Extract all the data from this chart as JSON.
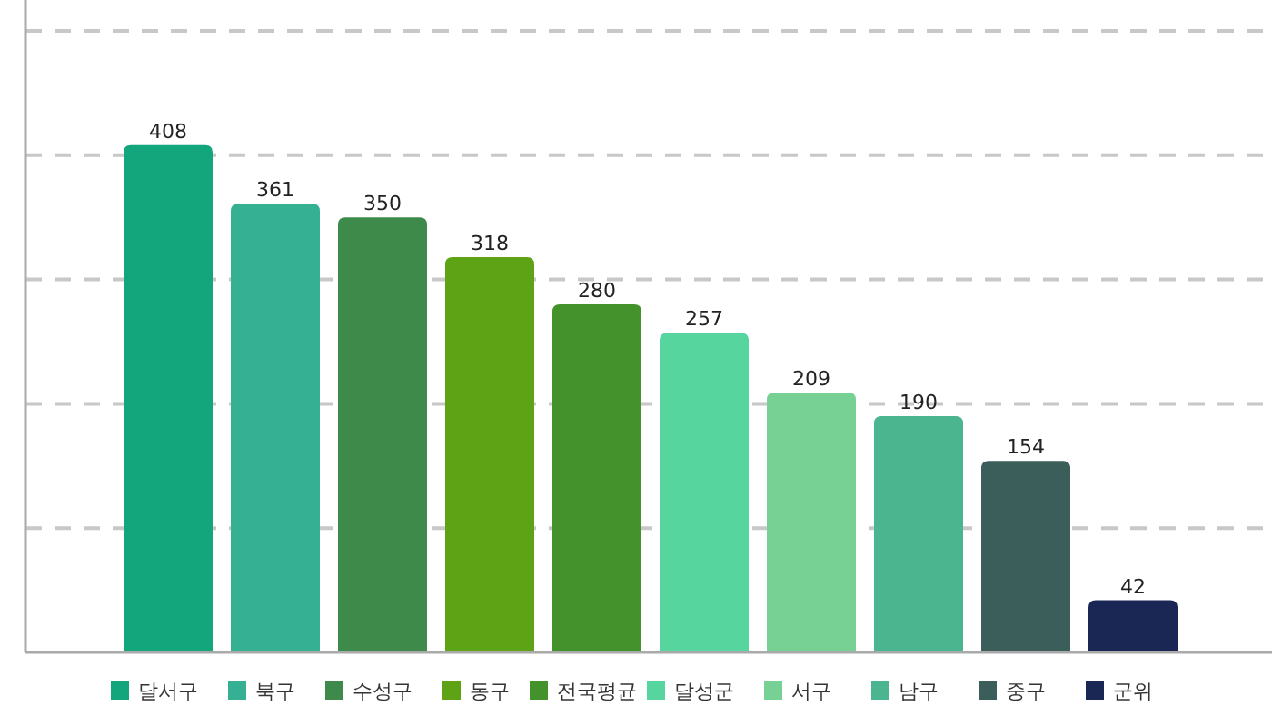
{
  "chart_data": {
    "type": "bar",
    "categories": [
      "달서구",
      "북구",
      "수성구",
      "동구",
      "전국평균",
      "달성군",
      "서구",
      "남구",
      "중구",
      "군위"
    ],
    "values": [
      408,
      361,
      350,
      318,
      280,
      257,
      209,
      190,
      154,
      42
    ],
    "colors": [
      "#13a67c",
      "#36b092",
      "#3d8a4a",
      "#5ea316",
      "#43922b",
      "#57d59f",
      "#77d194",
      "#4ab58e",
      "#3b5e5a",
      "#1a2654"
    ],
    "ylim": [
      0,
      500
    ],
    "yticks": [
      {
        "value": 0,
        "label": null
      },
      {
        "value": 100,
        "label": null
      },
      {
        "value": 200,
        "label": null
      },
      {
        "value": 300,
        "label": null
      },
      {
        "value": 400,
        "label": null
      },
      {
        "value": 500,
        "label": null
      }
    ],
    "grid": "y",
    "data_labels": true
  }
}
